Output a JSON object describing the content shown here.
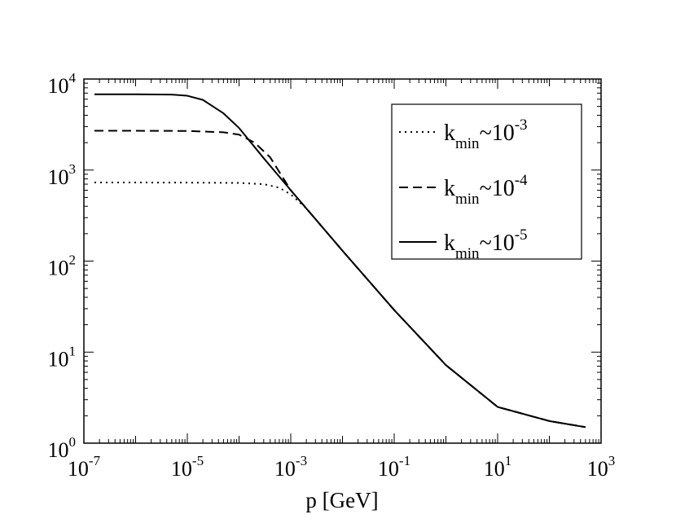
{
  "chart_data": {
    "type": "line",
    "scale": {
      "x": "log",
      "y": "log"
    },
    "title": "",
    "xlabel": "p [GeV]",
    "ylabel": "",
    "xlim": [
      1e-07,
      1000
    ],
    "ylim": [
      1,
      10000
    ],
    "x_ticks": [
      {
        "base": "10",
        "exp": "-7"
      },
      {
        "base": "10",
        "exp": "-5"
      },
      {
        "base": "10",
        "exp": "-3"
      },
      {
        "base": "10",
        "exp": "-1"
      },
      {
        "base": "10",
        "exp": "1"
      },
      {
        "base": "10",
        "exp": "3"
      }
    ],
    "y_ticks": [
      {
        "base": "10",
        "exp": "0"
      },
      {
        "base": "10",
        "exp": "1"
      },
      {
        "base": "10",
        "exp": "2"
      },
      {
        "base": "10",
        "exp": "3"
      },
      {
        "base": "10",
        "exp": "4"
      }
    ],
    "legend_position": "top-right",
    "series": [
      {
        "name": "k_min~10^-3",
        "label_main": "k",
        "label_sub": "min",
        "label_rel": "~10",
        "label_sup": "-3",
        "style": "dotted",
        "points": [
          [
            1.6e-07,
            730
          ],
          [
            1e-06,
            730
          ],
          [
            1e-05,
            728
          ],
          [
            0.0001,
            722
          ],
          [
            0.0003,
            700
          ],
          [
            0.0006,
            640
          ],
          [
            0.001,
            540
          ],
          [
            0.002,
            380
          ],
          [
            0.01,
            130
          ],
          [
            0.1,
            29
          ],
          [
            1,
            7.2
          ],
          [
            10,
            2.5
          ],
          [
            100,
            1.75
          ],
          [
            500,
            1.5
          ]
        ]
      },
      {
        "name": "k_min~10^-4",
        "label_main": "k",
        "label_sub": "min",
        "label_rel": "~10",
        "label_sup": "-4",
        "style": "dashed",
        "points": [
          [
            1.6e-07,
            2700
          ],
          [
            1e-06,
            2700
          ],
          [
            1e-05,
            2690
          ],
          [
            5e-05,
            2600
          ],
          [
            0.0001,
            2450
          ],
          [
            0.0002,
            2000
          ],
          [
            0.0004,
            1380
          ],
          [
            0.001,
            600
          ],
          [
            0.01,
            130
          ],
          [
            0.1,
            29
          ],
          [
            1,
            7.2
          ],
          [
            10,
            2.5
          ],
          [
            100,
            1.75
          ],
          [
            500,
            1.5
          ]
        ]
      },
      {
        "name": "k_min~10^-5",
        "label_main": "k",
        "label_sub": "min",
        "label_rel": "~10",
        "label_sup": "-5",
        "style": "solid",
        "points": [
          [
            1.6e-07,
            6800
          ],
          [
            1e-06,
            6800
          ],
          [
            5e-06,
            6750
          ],
          [
            1e-05,
            6550
          ],
          [
            2e-05,
            5900
          ],
          [
            5e-05,
            4200
          ],
          [
            0.0001,
            2900
          ],
          [
            0.0003,
            1350
          ],
          [
            0.001,
            600
          ],
          [
            0.01,
            130
          ],
          [
            0.1,
            29
          ],
          [
            1,
            7.2
          ],
          [
            10,
            2.5
          ],
          [
            100,
            1.75
          ],
          [
            500,
            1.5
          ]
        ]
      }
    ]
  }
}
